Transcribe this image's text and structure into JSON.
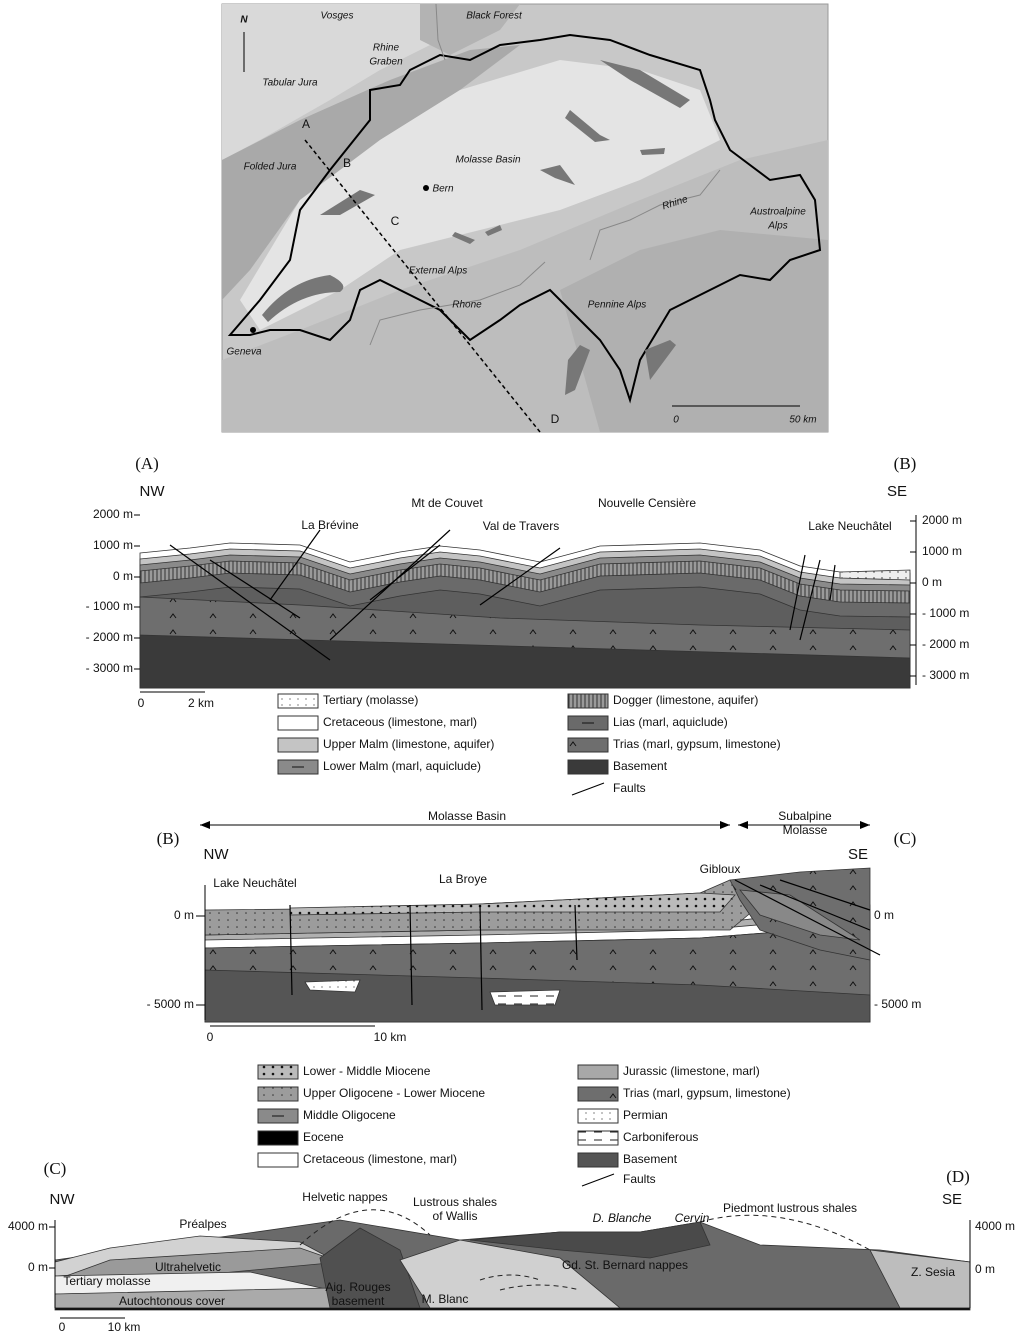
{
  "map": {
    "north": "N",
    "regions": [
      "Vosges",
      "Black Forest",
      [
        "Rhine",
        "Graben"
      ],
      "Tabular Jura",
      "Folded Jura",
      "Molasse Basin",
      [
        "Austroalpine",
        "Alps"
      ],
      "External Alps",
      "Pennine Alps"
    ],
    "cities": [
      "Bern",
      "Geneva"
    ],
    "rivers": [
      "Rhine",
      "Rhone"
    ],
    "section_points": [
      "A",
      "B",
      "C",
      "D"
    ],
    "scale": [
      "0",
      "50 km"
    ]
  },
  "section_ab": {
    "ends": [
      "(A)",
      "(B)"
    ],
    "directions": [
      "NW",
      "SE"
    ],
    "left_ticks": [
      "2000 m",
      "1000 m",
      "0 m",
      "- 1000 m",
      "- 2000 m",
      "- 3000 m"
    ],
    "right_ticks": [
      "2000 m",
      "1000 m",
      "0 m",
      "- 1000 m",
      "- 2000 m",
      "- 3000 m"
    ],
    "places": [
      "La Brévine",
      "Mt de Couvet",
      "Val de Travers",
      "Nouvelle Censière",
      "Lake Neuchâtel"
    ],
    "scale": [
      "0",
      "2 km"
    ],
    "legend": [
      "Tertiary (molasse)",
      "Cretaceous (limestone, marl)",
      "Upper Malm (limestone, aquifer)",
      "Lower Malm (marl, aquiclude)",
      "Dogger (limestone, aquifer)",
      "Lias (marl, aquiclude)",
      "Trias (marl, gypsum, limestone)",
      "Basement",
      "Faults"
    ]
  },
  "section_bc": {
    "domains": [
      "Molasse Basin",
      [
        "Subalpine",
        "Molasse"
      ]
    ],
    "ends": [
      "(B)",
      "(C)"
    ],
    "directions": [
      "NW",
      "SE"
    ],
    "left_ticks": [
      "0 m",
      "- 5000 m"
    ],
    "right_ticks": [
      "0 m",
      "- 5000 m"
    ],
    "places": [
      "Lake Neuchâtel",
      "La Broye",
      "Gibloux"
    ],
    "scale": [
      "0",
      "10 km"
    ],
    "legend": [
      "Lower - Middle Miocene",
      "Upper Oligocene - Lower Miocene",
      "Middle Oligocene",
      "Eocene",
      "Cretaceous (limestone, marl)",
      "Jurassic (limestone, marl)",
      "Trias (marl, gypsum, limestone)",
      "Permian",
      "Carboniferous",
      "Basement",
      "Faults"
    ]
  },
  "section_cd": {
    "ends": [
      "(C)",
      "(D)"
    ],
    "directions": [
      "NW",
      "SE"
    ],
    "left_ticks": [
      "4000 m",
      "0 m"
    ],
    "right_ticks": [
      "4000 m",
      "0 m"
    ],
    "units": [
      "Préalpes",
      "Helvetic nappes",
      [
        "Lustrous shales",
        "of Wallis"
      ],
      "D. Blanche",
      "Cervin",
      "Piedmont lustrous shales",
      "Ultrahelvetic",
      "Tertiary molasse",
      "Autochtonous cover",
      [
        "Aig. Rouges",
        "basement"
      ],
      "M. Blanc",
      "Gd. St. Bernard nappes",
      "Z. Sesia"
    ],
    "scale": [
      "0",
      "10 km"
    ]
  }
}
